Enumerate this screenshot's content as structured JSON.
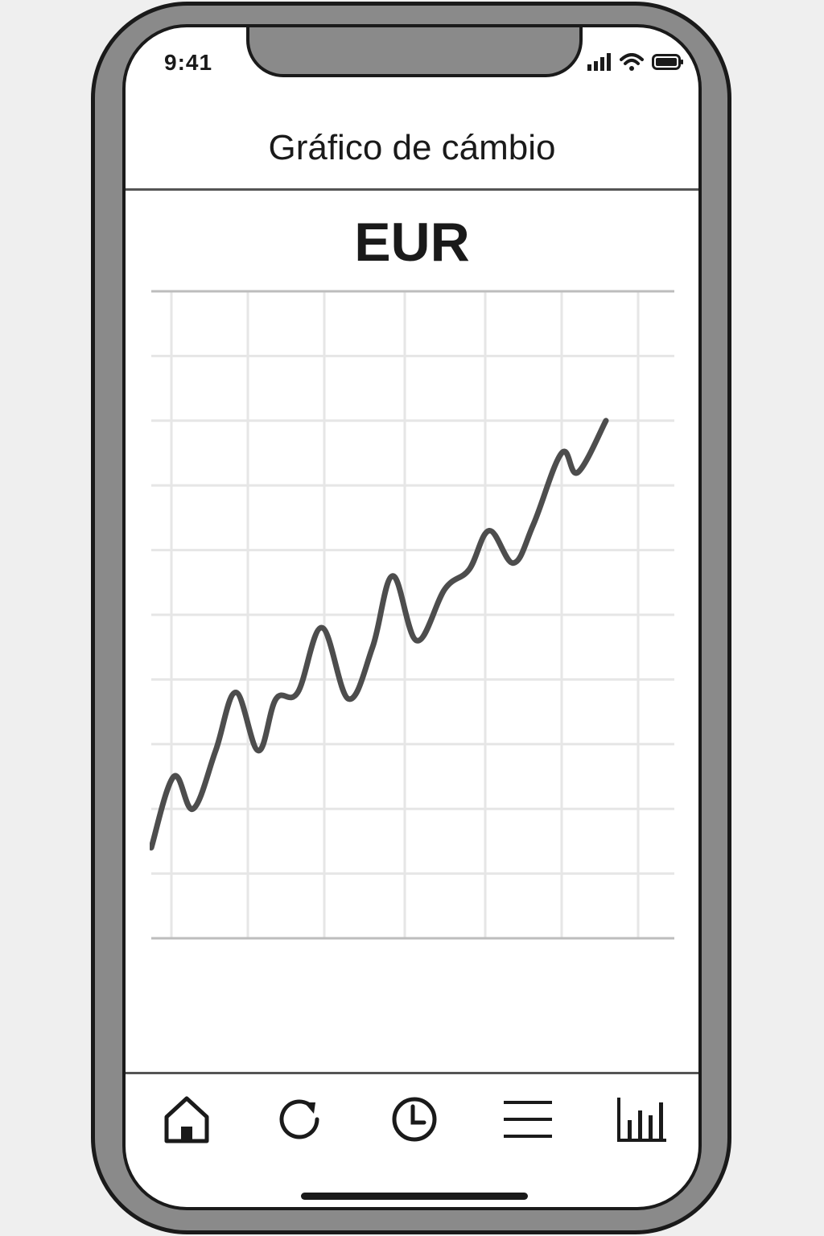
{
  "status_bar": {
    "time": "9:41",
    "icons": [
      "signal-icon",
      "wifi-icon",
      "battery-icon"
    ]
  },
  "header": {
    "title": "Gráfico de cámbio"
  },
  "currency": {
    "code": "EUR"
  },
  "chart_data": {
    "type": "line",
    "title": "",
    "xlabel": "",
    "ylabel": "",
    "grid": true,
    "xlim": [
      0,
      6.5
    ],
    "ylim": [
      0,
      10
    ],
    "series": [
      {
        "values_note": "",
        "points": [
          [
            0.0,
            1.4
          ],
          [
            0.28,
            2.5
          ],
          [
            0.52,
            2.0
          ],
          [
            0.8,
            2.9
          ],
          [
            1.05,
            3.8
          ],
          [
            1.33,
            2.9
          ],
          [
            1.55,
            3.7
          ],
          [
            1.82,
            3.8
          ],
          [
            2.12,
            4.8
          ],
          [
            2.45,
            3.7
          ],
          [
            2.75,
            4.5
          ],
          [
            3.0,
            5.6
          ],
          [
            3.3,
            4.6
          ],
          [
            3.65,
            5.4
          ],
          [
            3.95,
            5.7
          ],
          [
            4.2,
            6.3
          ],
          [
            4.5,
            5.8
          ],
          [
            4.75,
            6.4
          ],
          [
            5.1,
            7.5
          ],
          [
            5.3,
            7.2
          ],
          [
            5.65,
            8.0
          ]
        ]
      }
    ]
  },
  "tabbar": {
    "tabs": [
      {
        "name": "home",
        "icon": "home-icon"
      },
      {
        "name": "refresh",
        "icon": "refresh-icon"
      },
      {
        "name": "history",
        "icon": "clock-icon"
      },
      {
        "name": "menu",
        "icon": "menu-icon"
      },
      {
        "name": "chart",
        "icon": "bar-chart-icon"
      }
    ]
  }
}
